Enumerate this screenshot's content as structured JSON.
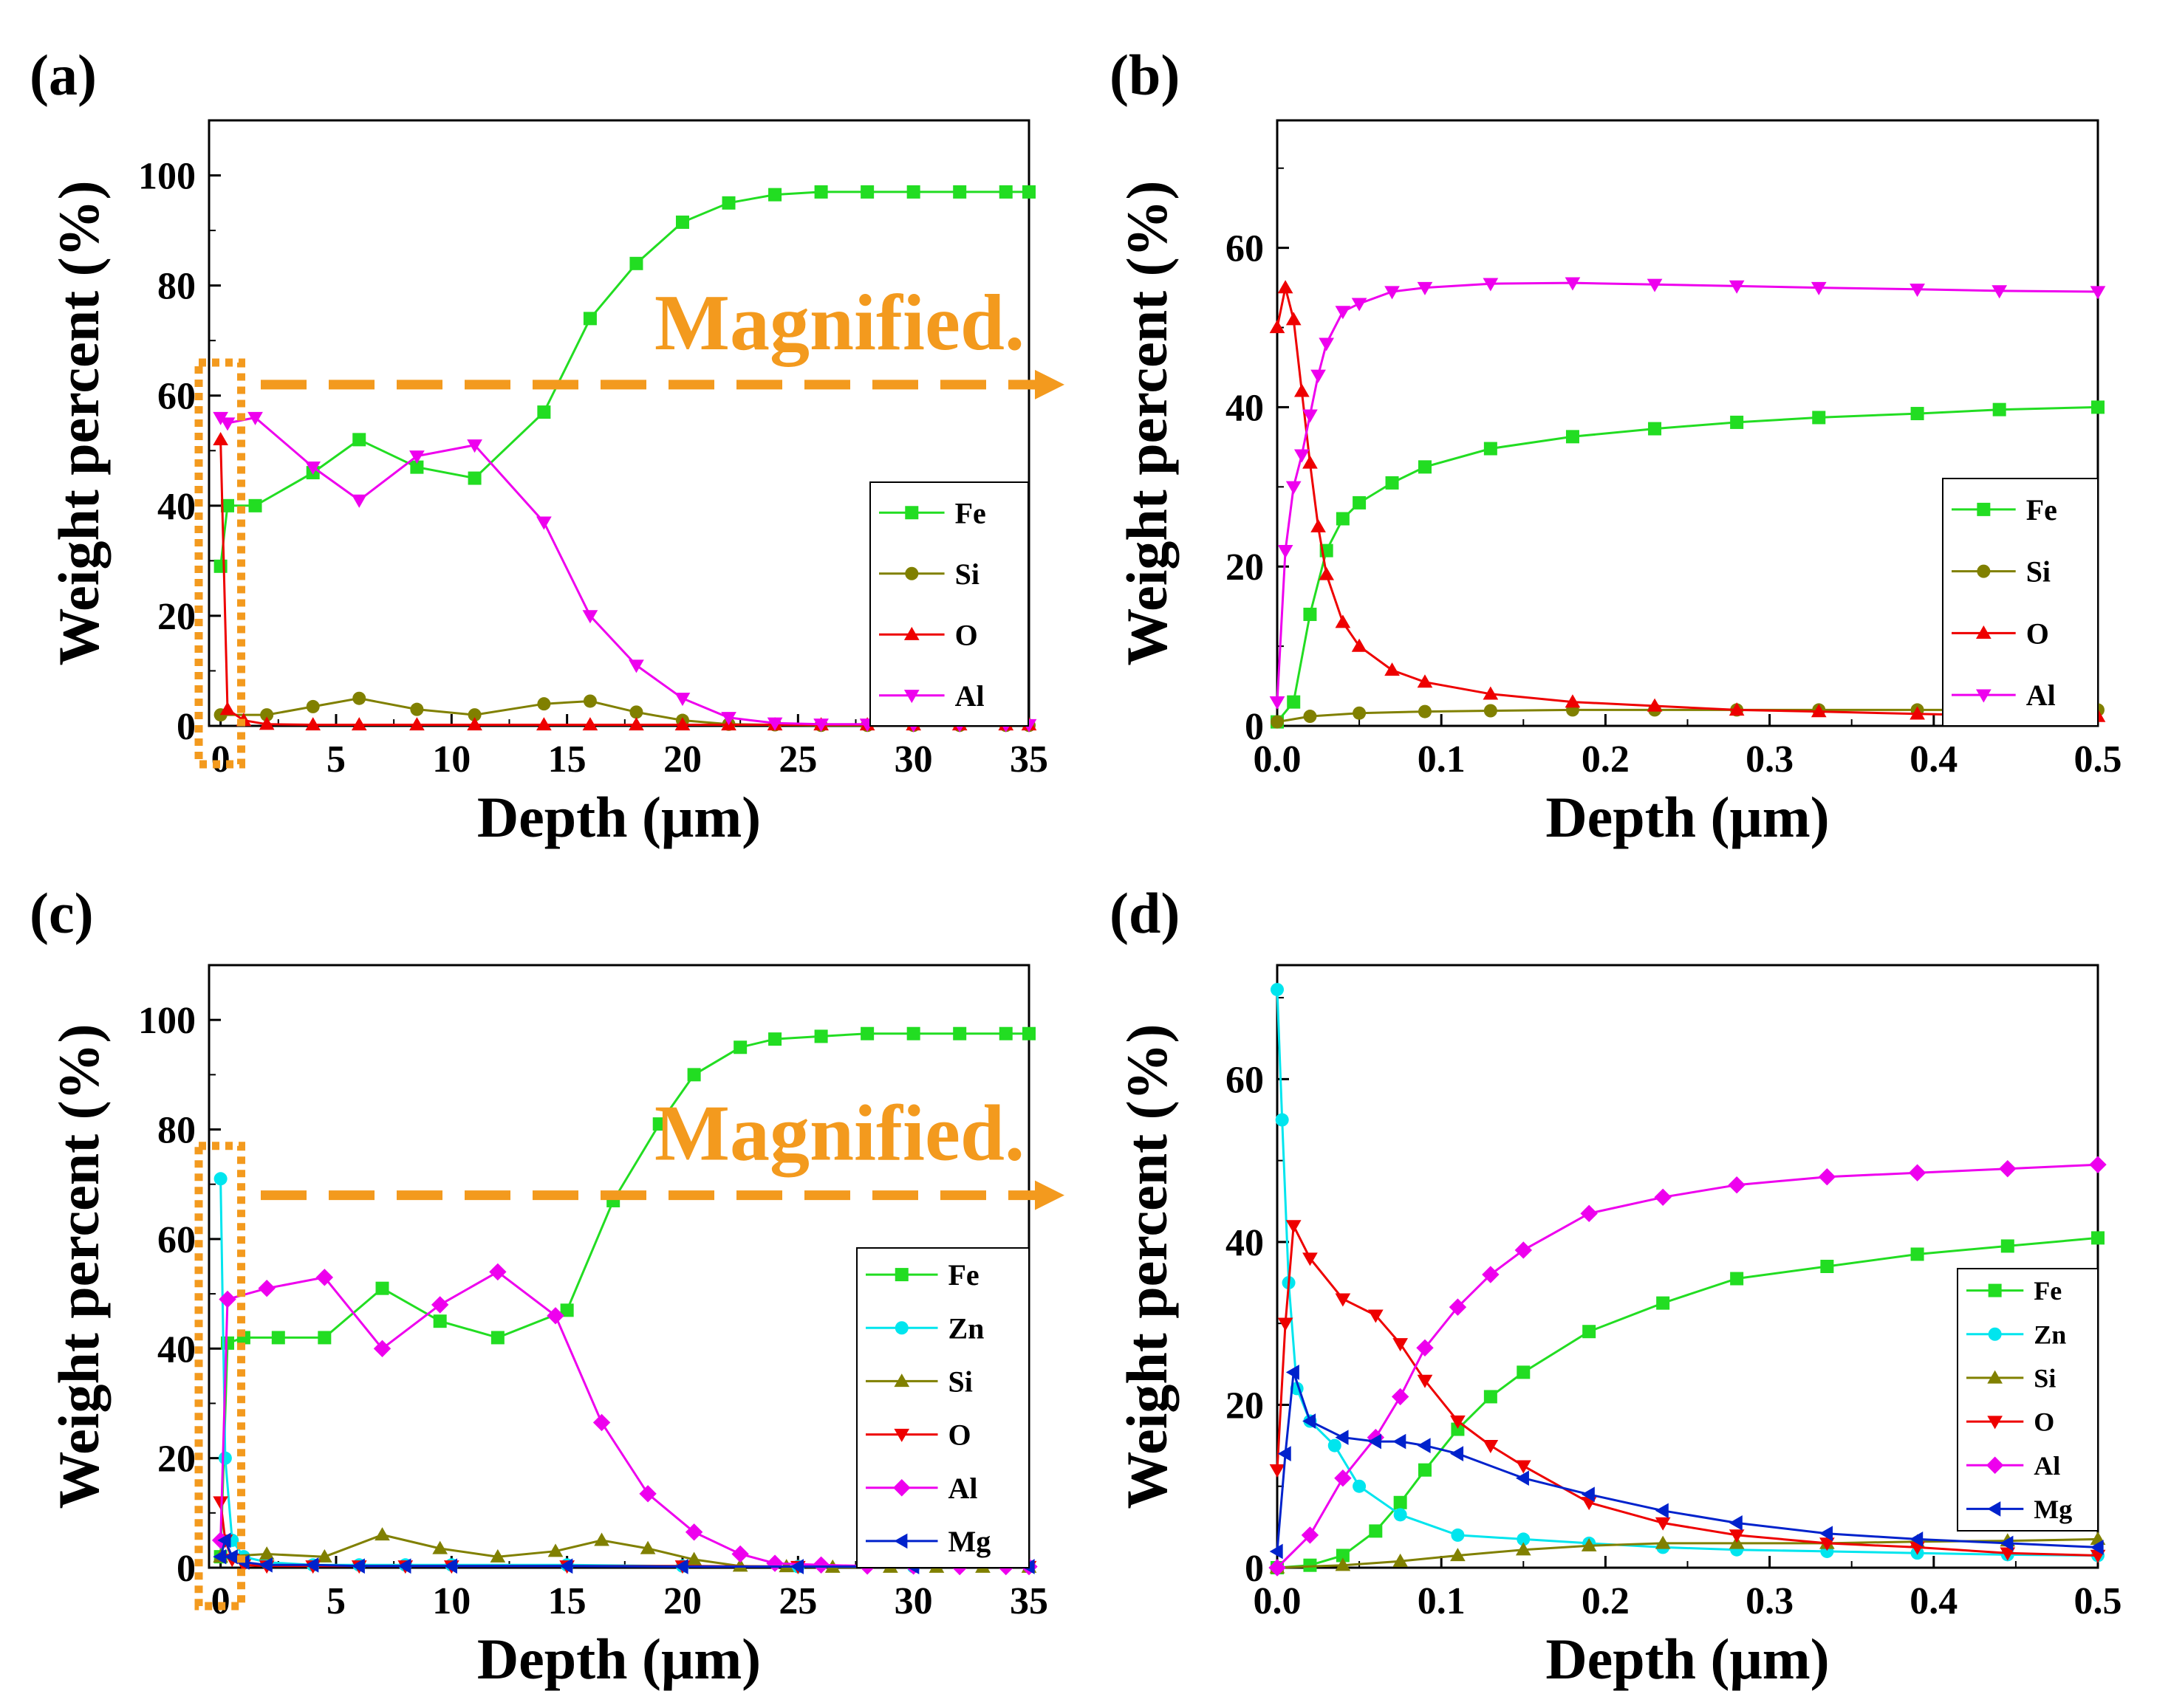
{
  "magnified_label": "Magnified.",
  "colors": {
    "Fe": "#22dd22",
    "Si": "#808000",
    "O": "#ee0000",
    "Al": "#ee00ee",
    "Zn": "#00e5ee",
    "Mg": "#0022cc",
    "annotation": "#f39a1e"
  },
  "chart_data": [
    {
      "panel_label": "(a)",
      "type": "line",
      "xlabel": "Depth (μm)",
      "ylabel": "Weight percent (%)",
      "xlim": [
        -0.5,
        35
      ],
      "ylim": [
        0,
        110
      ],
      "xticks": [
        0,
        5,
        10,
        15,
        20,
        25,
        30,
        35
      ],
      "xtick_labels": [
        "0",
        "5",
        "10",
        "15",
        "20",
        "25",
        "30",
        "35"
      ],
      "yticks": [
        0,
        20,
        40,
        60,
        80,
        100
      ],
      "ytick_labels": [
        "0",
        "20",
        "40",
        "60",
        "80",
        "100"
      ],
      "magnified_box": [
        0,
        0.7,
        0,
        66
      ],
      "magnified_arrow_y": 62,
      "series": [
        {
          "name": "Fe",
          "marker": "square",
          "x": [
            0,
            0.3,
            1.5,
            4,
            6,
            8.5,
            11,
            14,
            16,
            18,
            20,
            22,
            24,
            26,
            28,
            30,
            32,
            34,
            35
          ],
          "values": [
            29,
            40,
            40,
            46,
            52,
            47,
            45,
            57,
            74,
            84,
            91.5,
            95,
            96.5,
            97,
            97,
            97,
            97,
            97,
            97
          ]
        },
        {
          "name": "Si",
          "marker": "circle",
          "x": [
            0,
            2,
            4,
            6,
            8.5,
            11,
            14,
            16,
            18,
            20,
            22,
            24,
            26,
            28,
            30,
            32,
            34,
            35
          ],
          "values": [
            2,
            2,
            3.5,
            5,
            3,
            2,
            4,
            4.5,
            2.5,
            1,
            0.3,
            0.2,
            0.1,
            0.1,
            0.1,
            0.1,
            0.1,
            0.1
          ]
        },
        {
          "name": "O",
          "marker": "triangle-up",
          "x": [
            0,
            0.3,
            1,
            2,
            4,
            6,
            8.5,
            11,
            14,
            16,
            18,
            20,
            22,
            24,
            26,
            28,
            30,
            32,
            34,
            35
          ],
          "values": [
            52,
            3,
            1,
            0.3,
            0.2,
            0.2,
            0.2,
            0.2,
            0.2,
            0.2,
            0.2,
            0.2,
            0.2,
            0.2,
            0.2,
            0.2,
            0.2,
            0.2,
            0.2,
            0.2
          ]
        },
        {
          "name": "Al",
          "marker": "triangle-down",
          "x": [
            0,
            0.3,
            1.5,
            4,
            6,
            8.5,
            11,
            14,
            16,
            18,
            20,
            22,
            24,
            26,
            28,
            30,
            32,
            34,
            35
          ],
          "values": [
            56,
            55,
            56,
            47,
            41,
            49,
            51,
            37,
            20,
            11,
            5,
            1.5,
            0.5,
            0.3,
            0.3,
            0.2,
            0.2,
            0.2,
            0.2
          ]
        }
      ]
    },
    {
      "panel_label": "(b)",
      "type": "line",
      "xlabel": "Depth (μm)",
      "ylabel": "Weight percent (%)",
      "xlim": [
        0,
        0.5
      ],
      "ylim": [
        0,
        76
      ],
      "xticks": [
        0,
        0.1,
        0.2,
        0.3,
        0.4,
        0.5
      ],
      "xtick_labels": [
        "0.0",
        "0.1",
        "0.2",
        "0.3",
        "0.4",
        "0.5"
      ],
      "yticks": [
        0,
        20,
        40,
        60
      ],
      "ytick_labels": [
        "0",
        "20",
        "40",
        "60"
      ],
      "series": [
        {
          "name": "Fe",
          "marker": "square",
          "x": [
            0,
            0.01,
            0.02,
            0.03,
            0.04,
            0.05,
            0.07,
            0.09,
            0.13,
            0.18,
            0.23,
            0.28,
            0.33,
            0.39,
            0.44,
            0.5
          ],
          "values": [
            0.5,
            3,
            14,
            22,
            26,
            28,
            30.5,
            32.5,
            34.8,
            36.3,
            37.3,
            38.1,
            38.7,
            39.2,
            39.7,
            40
          ]
        },
        {
          "name": "Si",
          "marker": "circle",
          "x": [
            0,
            0.02,
            0.05,
            0.09,
            0.13,
            0.18,
            0.23,
            0.28,
            0.33,
            0.39,
            0.44,
            0.5
          ],
          "values": [
            0.5,
            1.2,
            1.6,
            1.8,
            1.9,
            2,
            2,
            2,
            2,
            2,
            2,
            2
          ]
        },
        {
          "name": "O",
          "marker": "triangle-up",
          "x": [
            0,
            0.005,
            0.01,
            0.015,
            0.02,
            0.025,
            0.03,
            0.04,
            0.05,
            0.07,
            0.09,
            0.13,
            0.18,
            0.23,
            0.28,
            0.33,
            0.39,
            0.44,
            0.5
          ],
          "values": [
            50,
            55,
            51,
            42,
            33,
            25,
            19,
            13,
            10,
            7,
            5.5,
            4,
            3,
            2.5,
            2,
            1.8,
            1.5,
            1.3,
            1.2
          ]
        },
        {
          "name": "Al",
          "marker": "triangle-down",
          "x": [
            0,
            0.005,
            0.01,
            0.015,
            0.02,
            0.025,
            0.03,
            0.04,
            0.05,
            0.07,
            0.09,
            0.13,
            0.18,
            0.23,
            0.28,
            0.33,
            0.39,
            0.44,
            0.5
          ],
          "values": [
            3,
            22,
            30,
            34,
            39,
            44,
            48,
            52,
            53,
            54.5,
            55,
            55.5,
            55.6,
            55.4,
            55.2,
            55,
            54.8,
            54.6,
            54.5
          ]
        }
      ]
    },
    {
      "panel_label": "(c)",
      "type": "line",
      "xlabel": "Depth (μm)",
      "ylabel": "Weight percent (%)",
      "xlim": [
        -0.5,
        35
      ],
      "ylim": [
        0,
        110
      ],
      "xticks": [
        0,
        5,
        10,
        15,
        20,
        25,
        30,
        35
      ],
      "xtick_labels": [
        "0",
        "5",
        "10",
        "15",
        "20",
        "25",
        "30",
        "35"
      ],
      "yticks": [
        0,
        20,
        40,
        60,
        80,
        100
      ],
      "ytick_labels": [
        "0",
        "20",
        "40",
        "60",
        "80",
        "100"
      ],
      "magnified_box": [
        0,
        0.7,
        0,
        77
      ],
      "magnified_arrow_y": 68,
      "series": [
        {
          "name": "Fe",
          "marker": "square",
          "x": [
            0,
            0.3,
            1,
            2.5,
            4.5,
            7,
            9.5,
            12,
            15,
            17,
            19,
            20.5,
            22.5,
            24,
            26,
            28,
            30,
            32,
            34,
            35
          ],
          "values": [
            2,
            41,
            42,
            42,
            42,
            51,
            45,
            42,
            47,
            67,
            81,
            90,
            95,
            96.5,
            97,
            97.5,
            97.5,
            97.5,
            97.5,
            97.5
          ]
        },
        {
          "name": "Zn",
          "marker": "circle",
          "x": [
            0,
            0.2,
            0.5,
            1,
            2,
            4,
            6,
            8,
            10,
            15,
            20,
            25,
            30,
            35
          ],
          "values": [
            71,
            20,
            5,
            2,
            1,
            0.5,
            0.5,
            0.5,
            0.5,
            0.5,
            0.3,
            0.2,
            0.2,
            0.2
          ]
        },
        {
          "name": "Si",
          "marker": "triangle-up",
          "x": [
            0,
            2,
            4.5,
            7,
            9.5,
            12,
            14.5,
            16.5,
            18.5,
            20.5,
            22.5,
            24.5,
            26.5,
            29,
            31,
            33,
            35
          ],
          "values": [
            2,
            2.5,
            2,
            6,
            3.5,
            2,
            3,
            5,
            3.5,
            1.5,
            0.3,
            0.2,
            0.1,
            0.1,
            0.1,
            0.1,
            0.1
          ]
        },
        {
          "name": "O",
          "marker": "triangle-down",
          "x": [
            0,
            0.2,
            0.5,
            1,
            2,
            4,
            6,
            8,
            10,
            15,
            20,
            25,
            30,
            35
          ],
          "values": [
            12,
            5,
            1.5,
            0.5,
            0.3,
            0.3,
            0.3,
            0.3,
            0.3,
            0.3,
            0.3,
            0.2,
            0.2,
            0.2
          ]
        },
        {
          "name": "Al",
          "marker": "diamond",
          "x": [
            0,
            0.3,
            2,
            4.5,
            7,
            9.5,
            12,
            14.5,
            16.5,
            18.5,
            20.5,
            22.5,
            24,
            26,
            28,
            30,
            32,
            34,
            35
          ],
          "values": [
            5,
            49,
            51,
            53,
            40,
            48,
            54,
            46,
            26.5,
            13.5,
            6.5,
            2.5,
            0.8,
            0.5,
            0.3,
            0.3,
            0.2,
            0.2,
            0.2
          ]
        },
        {
          "name": "Mg",
          "marker": "triangle-left",
          "x": [
            0,
            0.2,
            0.5,
            1,
            2,
            4,
            6,
            8,
            10,
            15,
            20,
            25,
            30,
            35
          ],
          "values": [
            2,
            5,
            2,
            1,
            0.5,
            0.5,
            0.3,
            0.3,
            0.3,
            0.3,
            0.2,
            0.2,
            0.2,
            0.2
          ]
        }
      ]
    },
    {
      "panel_label": "(d)",
      "type": "line",
      "xlabel": "Depth (μm)",
      "ylabel": "Weight percent (%)",
      "xlim": [
        0,
        0.5
      ],
      "ylim": [
        0,
        74
      ],
      "xticks": [
        0,
        0.1,
        0.2,
        0.3,
        0.4,
        0.5
      ],
      "xtick_labels": [
        "0.0",
        "0.1",
        "0.2",
        "0.3",
        "0.4",
        "0.5"
      ],
      "yticks": [
        0,
        20,
        40,
        60
      ],
      "ytick_labels": [
        "0",
        "20",
        "40",
        "60"
      ],
      "series": [
        {
          "name": "Fe",
          "marker": "square",
          "x": [
            0,
            0.02,
            0.04,
            0.06,
            0.075,
            0.09,
            0.11,
            0.13,
            0.15,
            0.19,
            0.235,
            0.28,
            0.335,
            0.39,
            0.445,
            0.5
          ],
          "values": [
            0,
            0.3,
            1.5,
            4.5,
            8,
            12,
            17,
            21,
            24,
            29,
            32.5,
            35.5,
            37,
            38.5,
            39.5,
            40.5
          ]
        },
        {
          "name": "Zn",
          "marker": "circle",
          "x": [
            0,
            0.003,
            0.007,
            0.012,
            0.02,
            0.035,
            0.05,
            0.075,
            0.11,
            0.15,
            0.19,
            0.235,
            0.28,
            0.335,
            0.39,
            0.445,
            0.5
          ],
          "values": [
            71,
            55,
            35,
            22,
            18,
            15,
            10,
            6.5,
            4,
            3.5,
            3,
            2.5,
            2.2,
            2,
            1.8,
            1.6,
            1.5
          ]
        },
        {
          "name": "Si",
          "marker": "triangle-up",
          "x": [
            0,
            0.04,
            0.075,
            0.11,
            0.15,
            0.19,
            0.235,
            0.28,
            0.335,
            0.39,
            0.445,
            0.5
          ],
          "values": [
            0,
            0.3,
            0.8,
            1.5,
            2.2,
            2.7,
            3,
            3,
            3,
            3.2,
            3.3,
            3.5
          ]
        },
        {
          "name": "O",
          "marker": "triangle-down",
          "x": [
            0,
            0.005,
            0.01,
            0.02,
            0.04,
            0.06,
            0.075,
            0.09,
            0.11,
            0.13,
            0.15,
            0.19,
            0.235,
            0.28,
            0.335,
            0.39,
            0.445,
            0.5
          ],
          "values": [
            12,
            30,
            42,
            38,
            33,
            31,
            27.5,
            23,
            18,
            15,
            12.5,
            8,
            5.5,
            4,
            3,
            2.5,
            1.8,
            1.5
          ]
        },
        {
          "name": "Al",
          "marker": "diamond",
          "x": [
            0,
            0.02,
            0.04,
            0.06,
            0.075,
            0.09,
            0.11,
            0.13,
            0.15,
            0.19,
            0.235,
            0.28,
            0.335,
            0.39,
            0.445,
            0.5
          ],
          "values": [
            0,
            4,
            11,
            16,
            21,
            27,
            32,
            36,
            39,
            43.5,
            45.5,
            47,
            48,
            48.5,
            49,
            49.5
          ]
        },
        {
          "name": "Mg",
          "marker": "triangle-left",
          "x": [
            0,
            0.005,
            0.01,
            0.02,
            0.04,
            0.06,
            0.075,
            0.09,
            0.11,
            0.15,
            0.19,
            0.235,
            0.28,
            0.335,
            0.39,
            0.445,
            0.5
          ],
          "values": [
            2,
            14,
            24,
            18,
            16,
            15.5,
            15.5,
            15,
            14,
            11,
            9,
            7,
            5.5,
            4.2,
            3.5,
            3,
            2.5
          ]
        }
      ]
    }
  ]
}
